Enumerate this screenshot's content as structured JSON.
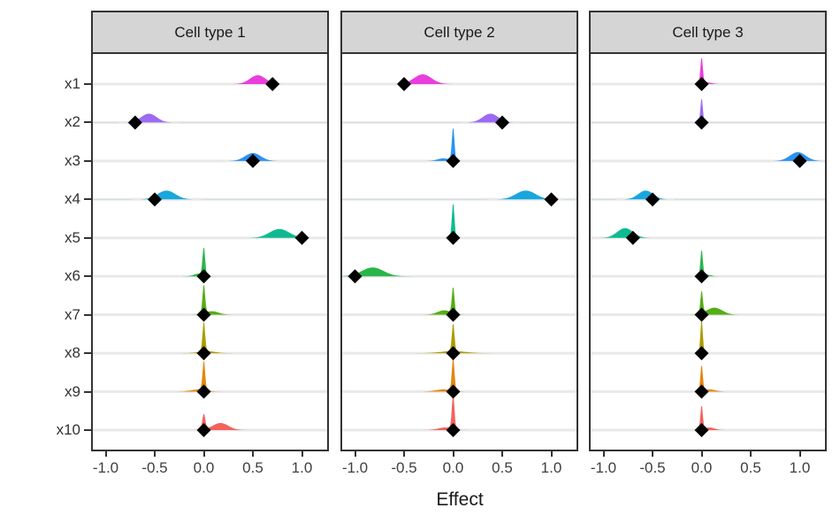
{
  "axis": {
    "xlabel": "Effect",
    "x_tick_labels": [
      "-1.0",
      "-0.5",
      "0.0",
      "0.5",
      "1.0"
    ],
    "x_tick_values": [
      -1.0,
      -0.5,
      0.0,
      0.5,
      1.0
    ],
    "y_categories": [
      "x1",
      "x2",
      "x3",
      "x4",
      "x5",
      "x6",
      "x7",
      "x8",
      "x9",
      "x10"
    ]
  },
  "colors": {
    "row_colors": [
      "#E93EDC",
      "#9B6BF2",
      "#2B92F0",
      "#18A7DC",
      "#0EBA92",
      "#2AB54A",
      "#55AE14",
      "#AD9C00",
      "#E3860E",
      "#F4625C"
    ],
    "diamond": "#000000",
    "strip_bg": "#D5D5D5",
    "strip_border": "#333333",
    "panel_border": "#333333",
    "gridline": "#E9E9E9",
    "axis_text": "#404040"
  },
  "chart_data": {
    "type": "ridgeline-density-with-points",
    "xlabel": "Effect",
    "xlim": [
      -1.13,
      1.26
    ],
    "x_ticks": [
      -1.0,
      -0.5,
      0.0,
      0.5,
      1.0
    ],
    "y_categories": [
      "x1",
      "x2",
      "x3",
      "x4",
      "x5",
      "x6",
      "x7",
      "x8",
      "x9",
      "x10"
    ],
    "grid": "horizontal-major-only",
    "legend": "none",
    "point_shape": "filled-diamond",
    "facets": [
      {
        "label": "Cell type 1",
        "rows": [
          {
            "var": "x1",
            "point": 0.7,
            "components": [
              {
                "mu": 0.55,
                "sigma": 0.08,
                "peak": 10
              }
            ]
          },
          {
            "var": "x2",
            "point": -0.7,
            "components": [
              {
                "mu": -0.56,
                "sigma": 0.08,
                "peak": 10
              }
            ]
          },
          {
            "var": "x3",
            "point": 0.5,
            "components": [
              {
                "mu": 0.5,
                "sigma": 0.08,
                "peak": 9
              }
            ]
          },
          {
            "var": "x4",
            "point": -0.5,
            "components": [
              {
                "mu": -0.38,
                "sigma": 0.09,
                "peak": 10
              }
            ]
          },
          {
            "var": "x5",
            "point": 1.0,
            "components": [
              {
                "mu": 0.77,
                "sigma": 0.1,
                "peak": 10
              }
            ]
          },
          {
            "var": "x6",
            "point": 0.0,
            "components": [
              {
                "mu": 0.0,
                "sigma": 0.013,
                "peak": 32
              },
              {
                "mu": -0.05,
                "sigma": 0.05,
                "peak": 3
              }
            ]
          },
          {
            "var": "x7",
            "point": 0.0,
            "components": [
              {
                "mu": 0.0,
                "sigma": 0.013,
                "peak": 33
              },
              {
                "mu": 0.08,
                "sigma": 0.07,
                "peak": 4
              }
            ]
          },
          {
            "var": "x8",
            "point": 0.0,
            "components": [
              {
                "mu": 0.0,
                "sigma": 0.013,
                "peak": 34
              },
              {
                "mu": 0.03,
                "sigma": 0.08,
                "peak": 2.5
              }
            ]
          },
          {
            "var": "x9",
            "point": 0.0,
            "components": [
              {
                "mu": 0.0,
                "sigma": 0.013,
                "peak": 34
              },
              {
                "mu": -0.05,
                "sigma": 0.08,
                "peak": 2.5
              }
            ]
          },
          {
            "var": "x10",
            "point": 0.0,
            "components": [
              {
                "mu": 0.0,
                "sigma": 0.015,
                "peak": 18
              },
              {
                "mu": 0.17,
                "sigma": 0.08,
                "peak": 8
              }
            ]
          }
        ]
      },
      {
        "label": "Cell type 2",
        "rows": [
          {
            "var": "x1",
            "point": -0.5,
            "components": [
              {
                "mu": -0.31,
                "sigma": 0.09,
                "peak": 11
              }
            ]
          },
          {
            "var": "x2",
            "point": 0.5,
            "components": [
              {
                "mu": 0.38,
                "sigma": 0.08,
                "peak": 10
              }
            ]
          },
          {
            "var": "x3",
            "point": 0.0,
            "components": [
              {
                "mu": 0.0,
                "sigma": 0.013,
                "peak": 38
              },
              {
                "mu": -0.1,
                "sigma": 0.06,
                "peak": 3
              }
            ]
          },
          {
            "var": "x4",
            "point": 1.0,
            "components": [
              {
                "mu": 0.74,
                "sigma": 0.1,
                "peak": 10
              }
            ]
          },
          {
            "var": "x5",
            "point": 0.0,
            "components": [
              {
                "mu": 0.0,
                "sigma": 0.013,
                "peak": 40
              }
            ]
          },
          {
            "var": "x6",
            "point": -1.0,
            "components": [
              {
                "mu": -0.82,
                "sigma": 0.11,
                "peak": 10
              }
            ]
          },
          {
            "var": "x7",
            "point": 0.0,
            "components": [
              {
                "mu": 0.0,
                "sigma": 0.013,
                "peak": 30
              },
              {
                "mu": -0.09,
                "sigma": 0.07,
                "peak": 5
              }
            ]
          },
          {
            "var": "x8",
            "point": 0.0,
            "components": [
              {
                "mu": 0.0,
                "sigma": 0.013,
                "peak": 32
              },
              {
                "mu": 0.0,
                "sigma": 0.12,
                "peak": 2.5
              }
            ]
          },
          {
            "var": "x9",
            "point": 0.0,
            "components": [
              {
                "mu": 0.0,
                "sigma": 0.013,
                "peak": 38
              },
              {
                "mu": -0.1,
                "sigma": 0.08,
                "peak": 2.5
              }
            ]
          },
          {
            "var": "x10",
            "point": 0.0,
            "components": [
              {
                "mu": 0.0,
                "sigma": 0.013,
                "peak": 40
              },
              {
                "mu": -0.08,
                "sigma": 0.07,
                "peak": 3
              }
            ]
          }
        ]
      },
      {
        "label": "Cell type 3",
        "rows": [
          {
            "var": "x1",
            "point": 0.0,
            "components": [
              {
                "mu": 0.0,
                "sigma": 0.012,
                "peak": 30
              },
              {
                "mu": 0.05,
                "sigma": 0.05,
                "peak": 2
              }
            ]
          },
          {
            "var": "x2",
            "point": 0.0,
            "components": [
              {
                "mu": 0.0,
                "sigma": 0.012,
                "peak": 28
              }
            ]
          },
          {
            "var": "x3",
            "point": 1.0,
            "components": [
              {
                "mu": 0.98,
                "sigma": 0.08,
                "peak": 10
              }
            ]
          },
          {
            "var": "x4",
            "point": -0.5,
            "components": [
              {
                "mu": -0.57,
                "sigma": 0.075,
                "peak": 10
              }
            ]
          },
          {
            "var": "x5",
            "point": -0.7,
            "components": [
              {
                "mu": -0.78,
                "sigma": 0.08,
                "peak": 11
              }
            ]
          },
          {
            "var": "x6",
            "point": 0.0,
            "components": [
              {
                "mu": 0.0,
                "sigma": 0.012,
                "peak": 30
              },
              {
                "mu": 0.05,
                "sigma": 0.04,
                "peak": 2
              }
            ]
          },
          {
            "var": "x7",
            "point": 0.0,
            "components": [
              {
                "mu": 0.0,
                "sigma": 0.012,
                "peak": 26
              },
              {
                "mu": 0.13,
                "sigma": 0.08,
                "peak": 8
              }
            ]
          },
          {
            "var": "x8",
            "point": 0.0,
            "components": [
              {
                "mu": 0.0,
                "sigma": 0.012,
                "peak": 38
              }
            ]
          },
          {
            "var": "x9",
            "point": 0.0,
            "components": [
              {
                "mu": 0.0,
                "sigma": 0.012,
                "peak": 30
              },
              {
                "mu": 0.08,
                "sigma": 0.06,
                "peak": 2.5
              }
            ]
          },
          {
            "var": "x10",
            "point": 0.0,
            "components": [
              {
                "mu": 0.0,
                "sigma": 0.012,
                "peak": 28
              },
              {
                "mu": 0.08,
                "sigma": 0.05,
                "peak": 3
              }
            ]
          }
        ]
      }
    ]
  }
}
